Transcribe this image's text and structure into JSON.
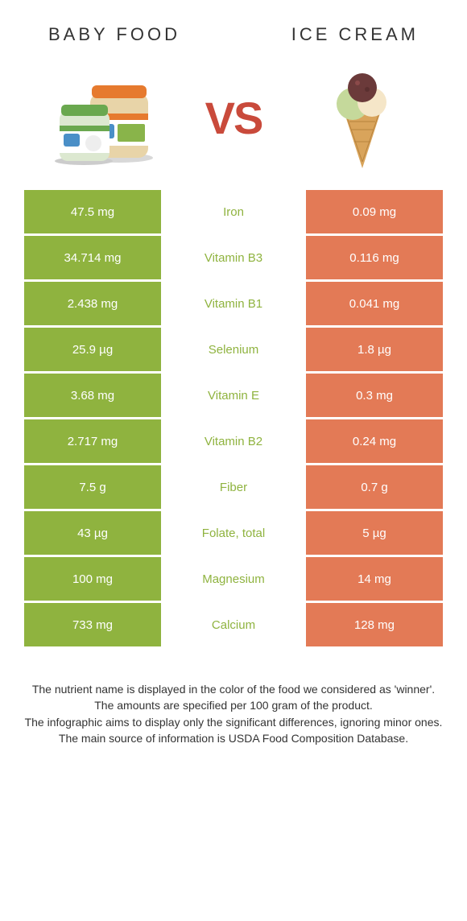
{
  "comparison": {
    "left_title": "BABY FOOD",
    "right_title": "ICE CREAM",
    "vs_label": "VS",
    "colors": {
      "left_bg": "#8fb33f",
      "right_bg": "#e37a56",
      "nutrient_left_win": "#8fb33f",
      "nutrient_right_win": "#e37a56",
      "title_color": "#333333",
      "vs_color": "#c94a3b",
      "text_white": "#ffffff",
      "footer_text": "#333333"
    },
    "rows": [
      {
        "left": "47.5 mg",
        "nutrient": "Iron",
        "right": "0.09 mg",
        "winner": "left"
      },
      {
        "left": "34.714 mg",
        "nutrient": "Vitamin B3",
        "right": "0.116 mg",
        "winner": "left"
      },
      {
        "left": "2.438 mg",
        "nutrient": "Vitamin B1",
        "right": "0.041 mg",
        "winner": "left"
      },
      {
        "left": "25.9 µg",
        "nutrient": "Selenium",
        "right": "1.8 µg",
        "winner": "left"
      },
      {
        "left": "3.68 mg",
        "nutrient": "Vitamin E",
        "right": "0.3 mg",
        "winner": "left"
      },
      {
        "left": "2.717 mg",
        "nutrient": "Vitamin B2",
        "right": "0.24 mg",
        "winner": "left"
      },
      {
        "left": "7.5 g",
        "nutrient": "Fiber",
        "right": "0.7 g",
        "winner": "left"
      },
      {
        "left": "43 µg",
        "nutrient": "Folate, total",
        "right": "5 µg",
        "winner": "left"
      },
      {
        "left": "100 mg",
        "nutrient": "Magnesium",
        "right": "14 mg",
        "winner": "left"
      },
      {
        "left": "733 mg",
        "nutrient": "Calcium",
        "right": "128 mg",
        "winner": "left"
      }
    ],
    "footer_lines": [
      "The nutrient name is displayed in the color of the food we considered as 'winner'.",
      "The amounts are specified per 100 gram of the product.",
      "The infographic aims to display only the significant differences, ignoring minor ones.",
      "The main source of information is USDA Food Composition Database."
    ]
  }
}
